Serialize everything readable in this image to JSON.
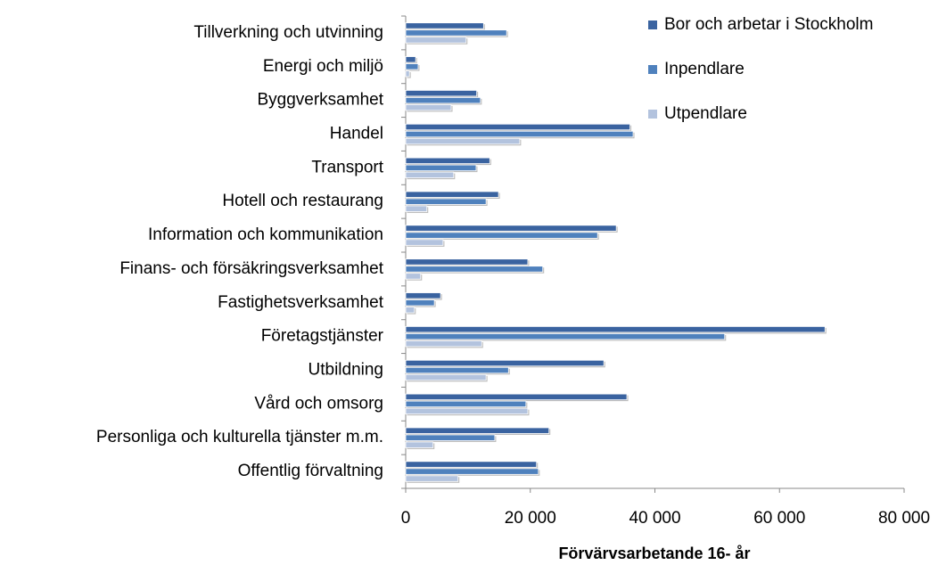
{
  "chart_data": {
    "type": "bar",
    "orientation": "horizontal",
    "xlabel": "Förvärvsarbetande 16- år",
    "categories": [
      "Tillverkning och utvinning",
      "Energi och miljö",
      "Byggverksamhet",
      "Handel",
      "Transport",
      "Hotell och restaurang",
      "Information och kommunikation",
      "Finans- och försäkringsverksamhet",
      "Fastighetsverksamhet",
      "Företagstjänster",
      "Utbildning",
      "Vård och omsorg",
      "Personliga och kulturella tjänster m.m.",
      "Offentlig förvaltning"
    ],
    "series": [
      {
        "name": "Bor och arbetar i Stockholm",
        "color": "#3a63a0",
        "values": [
          12500,
          1600,
          11400,
          36000,
          13500,
          14900,
          33800,
          19600,
          5600,
          67300,
          31800,
          35500,
          23000,
          21000
        ]
      },
      {
        "name": "Inpendlare",
        "color": "#4f81bd",
        "values": [
          16200,
          2000,
          12000,
          36500,
          11300,
          12900,
          30800,
          22000,
          4600,
          51200,
          16500,
          19300,
          14300,
          21300
        ]
      },
      {
        "name": "Utpendlare",
        "color": "#b3c3de",
        "values": [
          9700,
          600,
          7300,
          18300,
          7700,
          3400,
          6000,
          2400,
          1400,
          12200,
          12900,
          19600,
          4400,
          8400
        ]
      }
    ],
    "xlim": [
      0,
      80000
    ],
    "xticks": [
      0,
      {
        "value": 20000,
        "label": "20 000"
      },
      {
        "value": 40000,
        "label": "40 000"
      },
      {
        "value": 60000,
        "label": "60 000"
      },
      {
        "value": 80000,
        "label": "80 000"
      }
    ],
    "legend": "top-right"
  }
}
